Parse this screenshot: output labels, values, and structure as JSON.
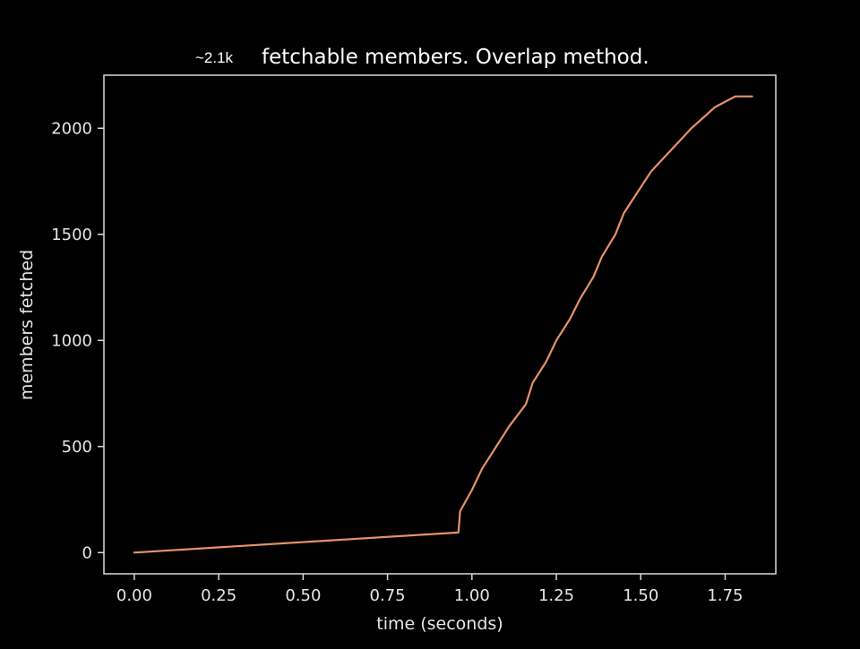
{
  "chart_data": {
    "type": "line",
    "title": "~2.1k fetchable members. Overlap method.",
    "title_parts": {
      "approx": "~2.1k",
      "main": "fetchable members. Overlap method."
    },
    "xlabel": "time (seconds)",
    "ylabel": "members fetched",
    "xlim": [
      -0.09,
      1.9
    ],
    "ylim": [
      -100,
      2250
    ],
    "xticks": [
      0.0,
      0.25,
      0.5,
      0.75,
      1.0,
      1.25,
      1.5,
      1.75
    ],
    "xtick_labels": [
      "0.00",
      "0.25",
      "0.50",
      "0.75",
      "1.00",
      "1.25",
      "1.50",
      "1.75"
    ],
    "yticks": [
      0,
      500,
      1000,
      1500,
      2000
    ],
    "ytick_labels": [
      "0",
      "500",
      "1000",
      "1500",
      "2000"
    ],
    "grid": false,
    "legend": "none",
    "colors": {
      "background": "#000000",
      "axes": "#d9d9d9",
      "text": "#e6e6e6",
      "line": "#e8926a"
    },
    "series": [
      {
        "color": "#e8926a",
        "x": [
          0.0,
          0.96,
          0.965,
          1.0,
          1.03,
          1.07,
          1.11,
          1.16,
          1.18,
          1.22,
          1.25,
          1.29,
          1.32,
          1.36,
          1.385,
          1.425,
          1.45,
          1.53,
          1.65,
          1.72,
          1.78,
          1.83
        ],
        "y": [
          0,
          95,
          195,
          295,
          395,
          495,
          595,
          700,
          800,
          900,
          1000,
          1100,
          1195,
          1300,
          1395,
          1500,
          1600,
          1795,
          2000,
          2100,
          2150,
          2150
        ]
      }
    ]
  }
}
